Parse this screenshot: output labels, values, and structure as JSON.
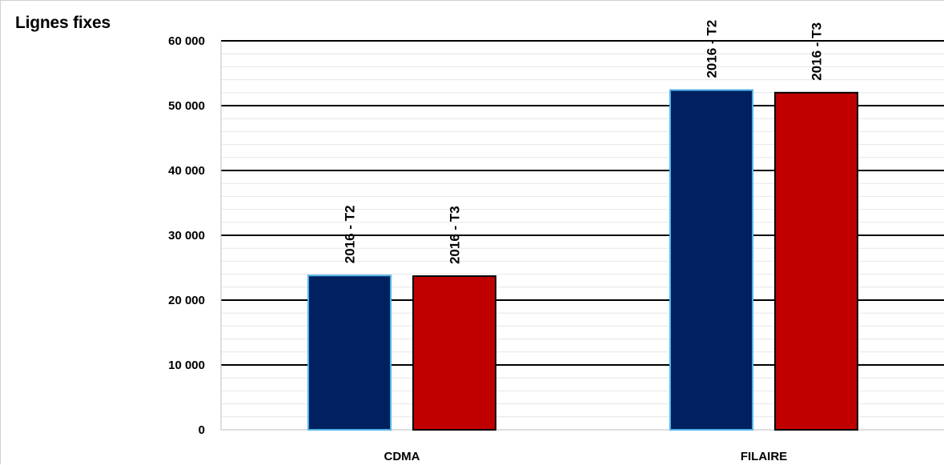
{
  "chart_data": {
    "type": "bar",
    "title": "Lignes fixes",
    "categories": [
      "CDMA",
      "FILAIRE"
    ],
    "series": [
      {
        "name": "2016 - T2",
        "values": [
          23800,
          52400
        ],
        "color": "#002060",
        "edge_color": "#4fb3e6"
      },
      {
        "name": "2016 - T3",
        "values": [
          23700,
          52000
        ],
        "color": "#c00000",
        "edge_color": "#000000"
      }
    ],
    "data_labels": [
      [
        "2016 - T2",
        "2016 - T3"
      ],
      [
        "2016 - T2",
        "2016 - T3"
      ]
    ],
    "ylim": [
      0,
      60000
    ],
    "y_ticks": [
      0,
      10000,
      20000,
      30000,
      40000,
      50000,
      60000
    ],
    "y_tick_labels": [
      "0",
      "10 000",
      "20 000",
      "30 000",
      "40 000",
      "50 000",
      "60 000"
    ],
    "xlabel": "",
    "ylabel": "",
    "grid": true,
    "legend": "none"
  }
}
